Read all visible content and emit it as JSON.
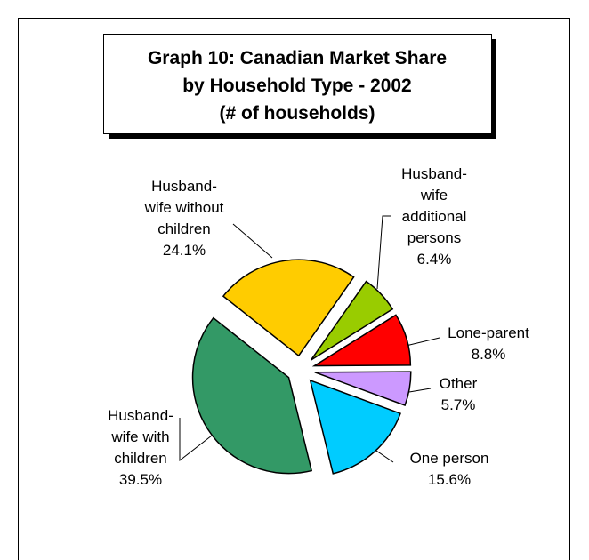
{
  "chart_data": {
    "type": "pie",
    "title": [
      "Graph 10: Canadian Market Share",
      "by Household Type - 2002",
      "(# of households)"
    ],
    "categories": [
      [
        "Husband-",
        "wife",
        "additional",
        "persons"
      ],
      [
        "Lone-parent"
      ],
      [
        "Other"
      ],
      [
        "One person"
      ],
      [
        "Husband-",
        "wife with",
        "children"
      ],
      [
        "Husband-",
        "wife without",
        "children"
      ]
    ],
    "values": [
      6.4,
      8.8,
      5.7,
      15.6,
      39.5,
      24.1
    ],
    "value_labels": [
      "6.4%",
      "8.8%",
      "5.7%",
      "15.6%",
      "39.5%",
      "24.1%"
    ],
    "colors": [
      "#99cc00",
      "#ff0000",
      "#cc99ff",
      "#00ccff",
      "#339966",
      "#ffcc00"
    ],
    "exploded": true
  }
}
